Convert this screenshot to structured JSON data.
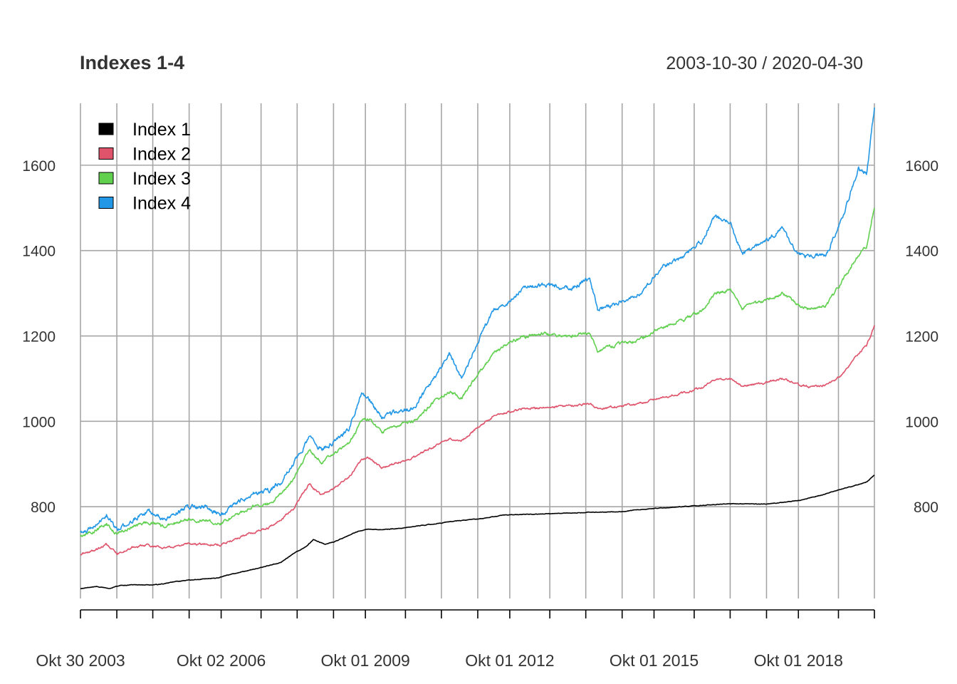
{
  "chart_data": {
    "type": "line",
    "title": "Indexes 1-4",
    "date_range": "2003-10-30 / 2020-04-30",
    "xlabel": "",
    "ylabel": "",
    "x_start": "2003-10-30",
    "x_end": "2020-04-30",
    "ylim": [
      585,
      1745
    ],
    "y_ticks": [
      800,
      1000,
      1200,
      1400,
      1600
    ],
    "x_ticks": [
      {
        "date": "2003-10-30",
        "label": "Okt 30 2003"
      },
      {
        "date": "2006-10-02",
        "label": "Okt 02 2006"
      },
      {
        "date": "2009-10-01",
        "label": "Okt 01 2009"
      },
      {
        "date": "2012-10-01",
        "label": "Okt 01 2012"
      },
      {
        "date": "2015-10-01",
        "label": "Okt 01 2015"
      },
      {
        "date": "2018-10-01",
        "label": "Okt 01 2018"
      }
    ],
    "x_grid_dates": [
      "2003-10-30",
      "2004-08-01",
      "2005-05-01",
      "2006-02-01",
      "2006-10-02",
      "2007-08-01",
      "2008-05-01",
      "2009-02-01",
      "2009-10-01",
      "2010-08-01",
      "2011-05-01",
      "2012-02-01",
      "2012-10-01",
      "2013-08-01",
      "2014-05-01",
      "2015-02-01",
      "2015-10-01",
      "2016-08-01",
      "2017-05-01",
      "2018-02-01",
      "2018-10-01",
      "2019-08-01",
      "2020-04-30"
    ],
    "grid": true,
    "legend_position": "top-left",
    "series": [
      {
        "name": "Index 1",
        "color": "#000000",
        "points": [
          [
            "2003-10-30",
            608
          ],
          [
            "2004-03-01",
            613
          ],
          [
            "2004-06-01",
            608
          ],
          [
            "2004-09-01",
            616
          ],
          [
            "2005-01-01",
            617
          ],
          [
            "2005-06-01",
            617
          ],
          [
            "2005-11-01",
            625
          ],
          [
            "2006-04-01",
            630
          ],
          [
            "2006-09-01",
            633
          ],
          [
            "2007-01-01",
            643
          ],
          [
            "2007-05-01",
            651
          ],
          [
            "2007-09-01",
            660
          ],
          [
            "2008-01-01",
            670
          ],
          [
            "2008-04-01",
            690
          ],
          [
            "2008-07-01",
            705
          ],
          [
            "2008-09-01",
            723
          ],
          [
            "2008-12-01",
            712
          ],
          [
            "2009-03-01",
            720
          ],
          [
            "2009-07-01",
            738
          ],
          [
            "2009-10-01",
            747
          ],
          [
            "2010-02-01",
            746
          ],
          [
            "2010-07-01",
            750
          ],
          [
            "2010-12-01",
            756
          ],
          [
            "2011-05-01",
            762
          ],
          [
            "2011-10-01",
            768
          ],
          [
            "2012-03-01",
            772
          ],
          [
            "2012-08-01",
            780
          ],
          [
            "2013-01-01",
            782
          ],
          [
            "2013-06-01",
            783
          ],
          [
            "2014-01-01",
            785
          ],
          [
            "2014-06-01",
            787
          ],
          [
            "2015-01-01",
            788
          ],
          [
            "2015-06-01",
            793
          ],
          [
            "2015-12-01",
            797
          ],
          [
            "2016-06-01",
            801
          ],
          [
            "2017-01-01",
            805
          ],
          [
            "2017-06-01",
            807
          ],
          [
            "2018-01-01",
            806
          ],
          [
            "2018-06-01",
            810
          ],
          [
            "2018-11-01",
            816
          ],
          [
            "2019-04-01",
            828
          ],
          [
            "2019-09-01",
            842
          ],
          [
            "2020-01-01",
            852
          ],
          [
            "2020-03-01",
            858
          ],
          [
            "2020-04-30",
            874
          ]
        ]
      },
      {
        "name": "Index 2",
        "color": "#DF536B",
        "points": [
          [
            "2003-10-30",
            688
          ],
          [
            "2004-03-01",
            700
          ],
          [
            "2004-05-15",
            713
          ],
          [
            "2004-08-01",
            690
          ],
          [
            "2004-12-01",
            705
          ],
          [
            "2005-04-01",
            710
          ],
          [
            "2005-08-01",
            702
          ],
          [
            "2006-01-01",
            712
          ],
          [
            "2006-06-01",
            713
          ],
          [
            "2006-10-01",
            710
          ],
          [
            "2007-02-01",
            726
          ],
          [
            "2007-06-01",
            740
          ],
          [
            "2007-10-01",
            751
          ],
          [
            "2008-01-01",
            770
          ],
          [
            "2008-04-01",
            795
          ],
          [
            "2008-08-01",
            852
          ],
          [
            "2008-11-01",
            826
          ],
          [
            "2009-02-01",
            843
          ],
          [
            "2009-06-01",
            870
          ],
          [
            "2009-09-01",
            910
          ],
          [
            "2009-11-01",
            915
          ],
          [
            "2010-02-01",
            890
          ],
          [
            "2010-06-01",
            903
          ],
          [
            "2010-10-01",
            915
          ],
          [
            "2011-03-01",
            940
          ],
          [
            "2011-07-01",
            960
          ],
          [
            "2011-10-01",
            955
          ],
          [
            "2012-02-01",
            985
          ],
          [
            "2012-06-01",
            1012
          ],
          [
            "2012-09-01",
            1020
          ],
          [
            "2013-01-01",
            1028
          ],
          [
            "2013-06-01",
            1032
          ],
          [
            "2014-01-01",
            1036
          ],
          [
            "2014-06-01",
            1040
          ],
          [
            "2014-08-01",
            1030
          ],
          [
            "2015-01-01",
            1035
          ],
          [
            "2015-06-01",
            1040
          ],
          [
            "2015-12-01",
            1055
          ],
          [
            "2016-05-01",
            1065
          ],
          [
            "2016-10-01",
            1080
          ],
          [
            "2017-01-01",
            1098
          ],
          [
            "2017-05-01",
            1100
          ],
          [
            "2017-08-01",
            1082
          ],
          [
            "2018-01-01",
            1090
          ],
          [
            "2018-06-01",
            1100
          ],
          [
            "2018-10-01",
            1085
          ],
          [
            "2019-01-01",
            1080
          ],
          [
            "2019-05-01",
            1085
          ],
          [
            "2019-09-01",
            1110
          ],
          [
            "2020-01-01",
            1160
          ],
          [
            "2020-03-01",
            1176
          ],
          [
            "2020-04-30",
            1225
          ]
        ]
      },
      {
        "name": "Index 3",
        "color": "#61D04F",
        "points": [
          [
            "2003-10-30",
            730
          ],
          [
            "2004-03-01",
            745
          ],
          [
            "2004-05-15",
            760
          ],
          [
            "2004-08-01",
            735
          ],
          [
            "2004-12-01",
            755
          ],
          [
            "2005-04-01",
            765
          ],
          [
            "2005-08-01",
            752
          ],
          [
            "2006-01-01",
            770
          ],
          [
            "2006-06-01",
            768
          ],
          [
            "2006-10-01",
            760
          ],
          [
            "2007-02-01",
            780
          ],
          [
            "2007-06-01",
            800
          ],
          [
            "2007-10-01",
            808
          ],
          [
            "2008-01-01",
            830
          ],
          [
            "2008-04-01",
            865
          ],
          [
            "2008-08-01",
            930
          ],
          [
            "2008-11-01",
            905
          ],
          [
            "2009-02-01",
            922
          ],
          [
            "2009-06-01",
            950
          ],
          [
            "2009-09-01",
            1000
          ],
          [
            "2009-11-01",
            1005
          ],
          [
            "2010-02-01",
            975
          ],
          [
            "2010-06-01",
            990
          ],
          [
            "2010-10-01",
            1000
          ],
          [
            "2011-03-01",
            1045
          ],
          [
            "2011-07-01",
            1070
          ],
          [
            "2011-10-01",
            1055
          ],
          [
            "2012-02-01",
            1110
          ],
          [
            "2012-06-01",
            1160
          ],
          [
            "2012-09-01",
            1180
          ],
          [
            "2013-01-01",
            1198
          ],
          [
            "2013-06-01",
            1205
          ],
          [
            "2014-01-01",
            1200
          ],
          [
            "2014-06-01",
            1208
          ],
          [
            "2014-08-01",
            1165
          ],
          [
            "2015-01-01",
            1180
          ],
          [
            "2015-06-01",
            1190
          ],
          [
            "2015-12-01",
            1220
          ],
          [
            "2016-05-01",
            1235
          ],
          [
            "2016-10-01",
            1260
          ],
          [
            "2017-01-01",
            1300
          ],
          [
            "2017-05-01",
            1308
          ],
          [
            "2017-08-01",
            1265
          ],
          [
            "2018-01-01",
            1280
          ],
          [
            "2018-06-01",
            1300
          ],
          [
            "2018-10-01",
            1270
          ],
          [
            "2019-01-01",
            1262
          ],
          [
            "2019-05-01",
            1270
          ],
          [
            "2019-09-01",
            1330
          ],
          [
            "2020-01-01",
            1390
          ],
          [
            "2020-03-01",
            1410
          ],
          [
            "2020-04-30",
            1500
          ]
        ]
      },
      {
        "name": "Index 4",
        "color": "#2297E6",
        "points": [
          [
            "2003-10-30",
            740
          ],
          [
            "2004-03-01",
            758
          ],
          [
            "2004-05-15",
            782
          ],
          [
            "2004-08-01",
            745
          ],
          [
            "2004-12-01",
            770
          ],
          [
            "2005-04-01",
            790
          ],
          [
            "2005-08-01",
            768
          ],
          [
            "2006-01-01",
            798
          ],
          [
            "2006-06-01",
            800
          ],
          [
            "2006-10-01",
            780
          ],
          [
            "2007-02-01",
            810
          ],
          [
            "2007-06-01",
            830
          ],
          [
            "2007-10-01",
            838
          ],
          [
            "2008-01-01",
            858
          ],
          [
            "2008-04-01",
            900
          ],
          [
            "2008-08-01",
            960
          ],
          [
            "2008-11-01",
            935
          ],
          [
            "2009-02-01",
            950
          ],
          [
            "2009-06-01",
            985
          ],
          [
            "2009-09-01",
            1065
          ],
          [
            "2009-11-01",
            1050
          ],
          [
            "2010-02-01",
            1010
          ],
          [
            "2010-06-01",
            1025
          ],
          [
            "2010-10-01",
            1030
          ],
          [
            "2011-03-01",
            1100
          ],
          [
            "2011-07-01",
            1160
          ],
          [
            "2011-10-01",
            1100
          ],
          [
            "2012-02-01",
            1185
          ],
          [
            "2012-06-01",
            1260
          ],
          [
            "2012-09-01",
            1270
          ],
          [
            "2013-01-01",
            1310
          ],
          [
            "2013-06-01",
            1322
          ],
          [
            "2014-01-01",
            1310
          ],
          [
            "2014-06-01",
            1335
          ],
          [
            "2014-08-01",
            1260
          ],
          [
            "2015-01-01",
            1280
          ],
          [
            "2015-06-01",
            1295
          ],
          [
            "2015-12-01",
            1360
          ],
          [
            "2016-05-01",
            1385
          ],
          [
            "2016-10-01",
            1425
          ],
          [
            "2017-01-01",
            1480
          ],
          [
            "2017-05-01",
            1465
          ],
          [
            "2017-08-01",
            1390
          ],
          [
            "2018-01-01",
            1420
          ],
          [
            "2018-06-01",
            1450
          ],
          [
            "2018-10-01",
            1390
          ],
          [
            "2019-01-01",
            1388
          ],
          [
            "2019-05-01",
            1390
          ],
          [
            "2019-09-01",
            1480
          ],
          [
            "2020-01-01",
            1590
          ],
          [
            "2020-03-01",
            1578
          ],
          [
            "2020-04-30",
            1735
          ]
        ]
      }
    ]
  }
}
